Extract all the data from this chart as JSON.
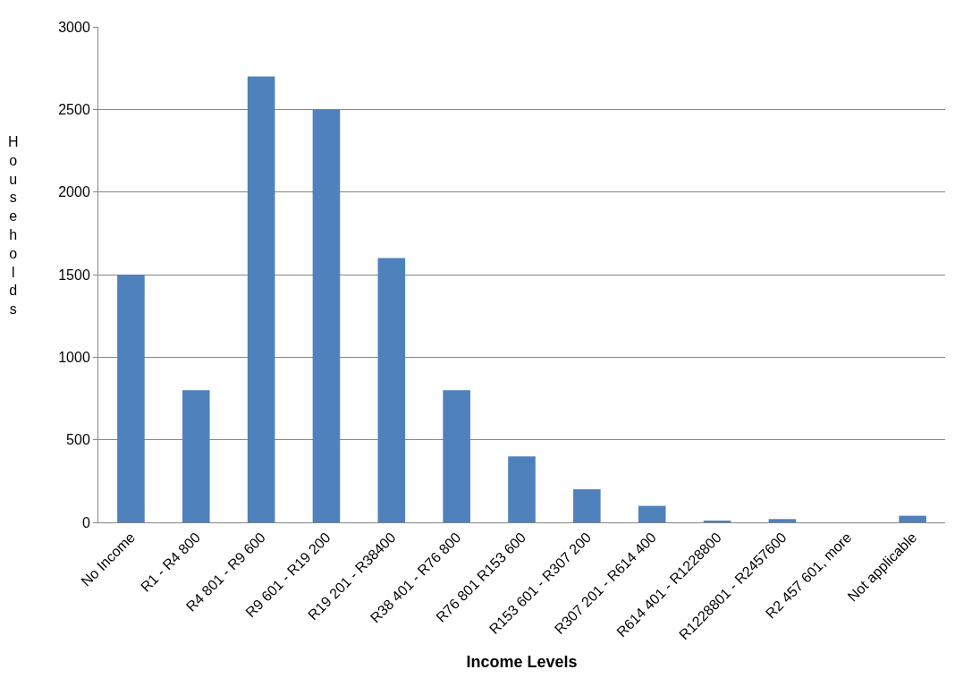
{
  "chart_data": {
    "type": "bar",
    "categories": [
      "No Income",
      "R1 - R4 800",
      "R4 801 - R9 600",
      "R9 601 - R19 200",
      "R19 201 - R38400",
      "R38 401 - R76 800",
      "R76 801 R153 600",
      "R153 601 - R307 200",
      "R307 201 - R614 400",
      "R614 401 - R1228800",
      "R1228801 - R2457600",
      "R2 457 601, more",
      "Not applicable"
    ],
    "values": [
      1500,
      800,
      2700,
      2500,
      1600,
      800,
      400,
      200,
      100,
      10,
      20,
      0,
      40
    ],
    "color": "#4f81bd",
    "xlabel": "Income Levels",
    "ylabel": "Households",
    "ylim": [
      0,
      3000
    ],
    "yticks": [
      0,
      500,
      1000,
      1500,
      2000,
      2500,
      3000
    ],
    "grid": "y",
    "legend": false
  }
}
